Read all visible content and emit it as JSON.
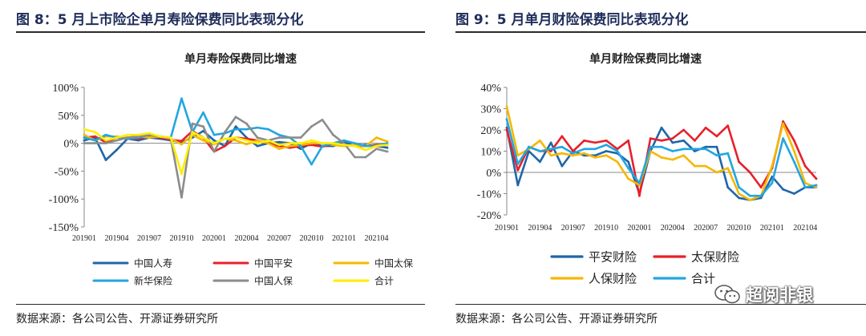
{
  "figures": {
    "left": {
      "heading": "图 8：5 月上市险企单月寿险保费同比表现分化",
      "source": "数据来源：各公司公告、开源证券研究所"
    },
    "right": {
      "heading": "图 9：5 月单月财险保费同比表现分化",
      "source": "数据来源：各公司公告、开源证券研究所"
    }
  },
  "watermark": {
    "text": "超阅非银",
    "icon": "wechat-icon"
  },
  "chart_data": [
    {
      "type": "line",
      "title": "单月寿险保费同比增速",
      "ylim": [
        -150,
        100
      ],
      "yticks": [
        100,
        50,
        0,
        -50,
        -100,
        -150
      ],
      "ytick_labels": [
        "100%",
        "50%",
        "0%",
        "-50%",
        "-100%",
        "-150%"
      ],
      "x_count": 29,
      "xtick_index": [
        0,
        3,
        6,
        9,
        12,
        15,
        18,
        21,
        24,
        27
      ],
      "xtick_labels": [
        "201901",
        "201904",
        "201907",
        "201910",
        "202001",
        "202004",
        "202007",
        "202010",
        "202101",
        "202104"
      ],
      "legend_position": "bottom",
      "legend_columns": 3,
      "series": [
        {
          "name": "中国人寿",
          "color": "#1f66a8",
          "values": [
            5,
            10,
            -30,
            -12,
            8,
            5,
            10,
            8,
            5,
            2,
            10,
            22,
            5,
            -5,
            30,
            10,
            -5,
            0,
            2,
            0,
            -10,
            0,
            -5,
            -5,
            2,
            -5,
            -3,
            -5,
            -8
          ]
        },
        {
          "name": "中国平安",
          "color": "#e8202a",
          "values": [
            10,
            12,
            2,
            10,
            8,
            8,
            12,
            10,
            6,
            4,
            22,
            10,
            -15,
            -5,
            10,
            8,
            5,
            0,
            -5,
            -8,
            -5,
            -3,
            -6,
            -2,
            -3,
            -5,
            -5,
            -3,
            -3
          ]
        },
        {
          "name": "中国太保",
          "color": "#f5b800",
          "values": [
            15,
            5,
            12,
            12,
            10,
            12,
            10,
            12,
            8,
            -2,
            15,
            5,
            -2,
            8,
            5,
            -2,
            5,
            0,
            -10,
            -5,
            -3,
            0,
            0,
            -3,
            -5,
            -3,
            -5,
            10,
            3
          ]
        },
        {
          "name": "新华保险",
          "color": "#22a6e0",
          "values": [
            10,
            5,
            15,
            10,
            8,
            10,
            15,
            12,
            10,
            80,
            20,
            55,
            15,
            18,
            25,
            25,
            28,
            25,
            15,
            10,
            -5,
            -38,
            -5,
            0,
            5,
            0,
            -5,
            -5,
            0
          ]
        },
        {
          "name": "中国人保",
          "color": "#8c8c8c",
          "values": [
            0,
            0,
            0,
            5,
            10,
            12,
            15,
            12,
            8,
            -97,
            35,
            30,
            -15,
            20,
            47,
            35,
            10,
            5,
            10,
            10,
            10,
            30,
            42,
            15,
            0,
            -25,
            -25,
            -10,
            -15
          ]
        },
        {
          "name": "合计",
          "color": "#ffee00",
          "values": [
            25,
            20,
            5,
            10,
            15,
            15,
            18,
            12,
            10,
            -55,
            20,
            10,
            0,
            8,
            10,
            5,
            0,
            5,
            -3,
            0,
            0,
            5,
            0,
            0,
            -3,
            -5,
            -12,
            -5,
            -3
          ]
        }
      ]
    },
    {
      "type": "line",
      "title": "单月财险保费同比增速",
      "ylim": [
        -20,
        40
      ],
      "yticks": [
        40,
        30,
        20,
        10,
        0,
        -10,
        -20
      ],
      "ytick_labels": [
        "40%",
        "30%",
        "20%",
        "10%",
        "0%",
        "-10%",
        "-20%"
      ],
      "x_count": 29,
      "xtick_index": [
        0,
        3,
        6,
        9,
        12,
        15,
        18,
        21,
        24,
        27
      ],
      "xtick_labels": [
        "201901",
        "201904",
        "201907",
        "201910",
        "202001",
        "202004",
        "202007",
        "202010",
        "202101",
        "202104"
      ],
      "legend_position": "bottom",
      "legend_columns": 2,
      "series": [
        {
          "name": "平安财险",
          "color": "#1f66a8",
          "values": [
            21,
            -6,
            10,
            5,
            14,
            3,
            10,
            8,
            8,
            10,
            9,
            5,
            -10,
            10,
            21,
            14,
            15,
            10,
            12,
            12,
            -7,
            -12,
            -13,
            -12,
            -2,
            -8,
            -10,
            -7,
            -7
          ]
        },
        {
          "name": "太保财险",
          "color": "#e8202a",
          "values": [
            20,
            1,
            12,
            10,
            10,
            17,
            10,
            15,
            14,
            15,
            11,
            15,
            -11,
            16,
            15,
            16,
            20,
            15,
            21,
            17,
            22,
            5,
            0,
            -7,
            2,
            24,
            15,
            3,
            -3
          ]
        },
        {
          "name": "人保财险",
          "color": "#f5b800",
          "values": [
            31,
            8,
            11,
            15,
            8,
            9,
            8,
            9,
            7,
            8,
            5,
            -3,
            -6,
            10,
            7,
            6,
            8,
            3,
            3,
            0,
            2,
            -10,
            -13,
            -11,
            3,
            23,
            10,
            -5,
            -7
          ]
        },
        {
          "name": "合计",
          "color": "#22a6e0",
          "values": [
            25,
            4,
            12,
            10,
            11,
            12,
            9,
            11,
            11,
            13,
            10,
            2,
            -5,
            12,
            12,
            10,
            11,
            11,
            11,
            8,
            9,
            -7,
            -11,
            -11,
            -5,
            16,
            5,
            -7,
            -6
          ]
        }
      ]
    }
  ]
}
